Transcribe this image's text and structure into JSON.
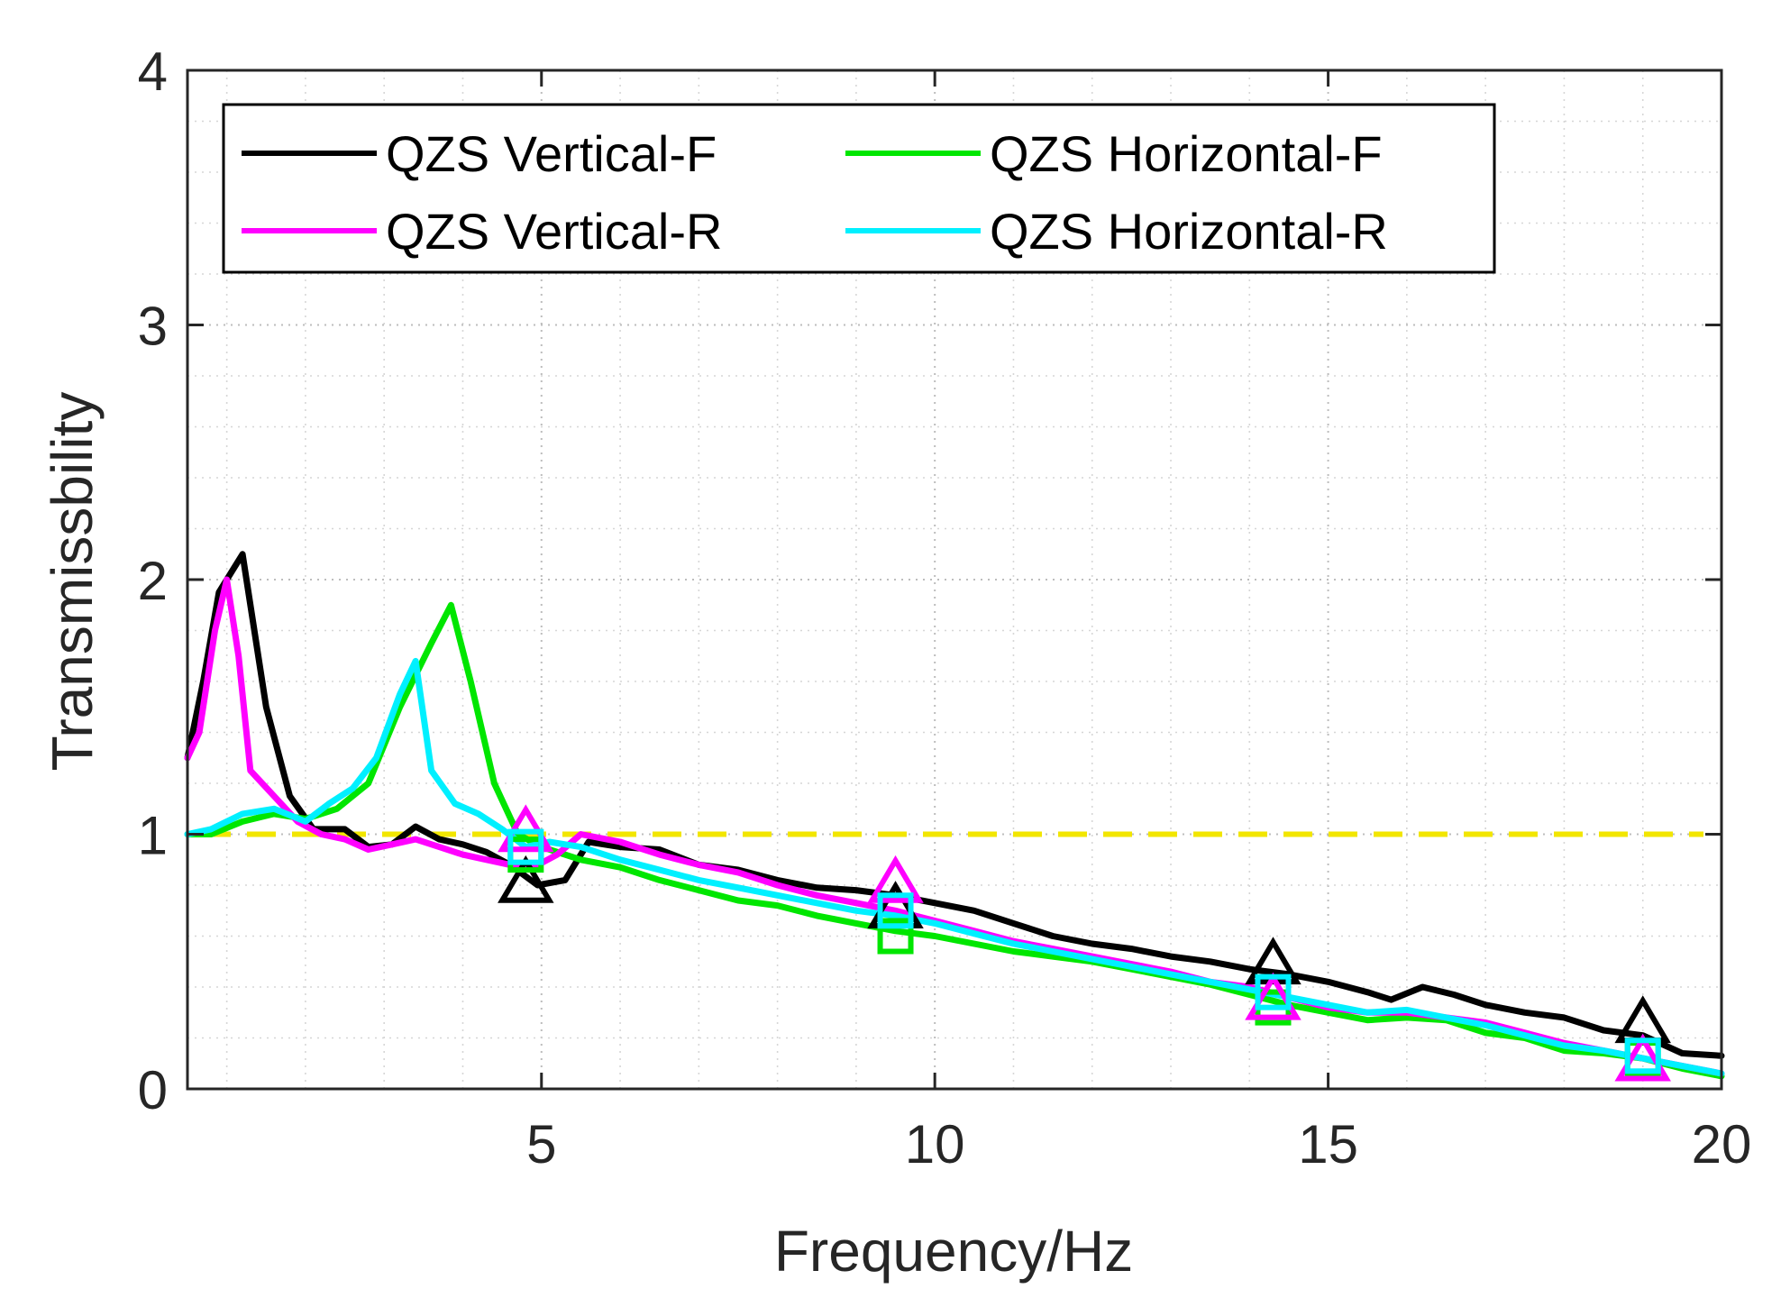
{
  "chart_data": {
    "type": "line",
    "title": "",
    "xlabel": "Frequency/Hz",
    "ylabel": "Transmissbility",
    "xlim": [
      0.5,
      20
    ],
    "ylim": [
      0,
      4
    ],
    "xticks": [
      5,
      10,
      15,
      20
    ],
    "yticks": [
      0,
      1,
      2,
      3,
      4
    ],
    "grid": "dotted, major and minor",
    "legend_position": "top-left, two columns",
    "reference_line": {
      "y": 1,
      "color": "#f2e600",
      "style": "dashed"
    },
    "series": [
      {
        "name": "QZS Vertical-F",
        "color": "#000000",
        "marker": "triangle",
        "x": [
          0.5,
          0.7,
          0.9,
          1.2,
          1.5,
          1.8,
          2.1,
          2.5,
          2.8,
          3.1,
          3.4,
          3.7,
          4.0,
          4.3,
          4.6,
          4.95,
          5.3,
          5.6,
          6.0,
          6.5,
          7.0,
          7.5,
          8.0,
          8.5,
          9.0,
          9.5,
          10.0,
          10.5,
          11.0,
          11.5,
          12.0,
          12.5,
          13.0,
          13.5,
          14.0,
          14.5,
          15.0,
          15.5,
          15.8,
          16.2,
          16.6,
          17.0,
          17.5,
          18.0,
          18.5,
          19.0,
          19.5,
          20.0
        ],
        "y": [
          1.3,
          1.6,
          1.95,
          2.1,
          1.5,
          1.15,
          1.02,
          1.02,
          0.95,
          0.96,
          1.03,
          0.98,
          0.96,
          0.93,
          0.88,
          0.8,
          0.82,
          0.97,
          0.95,
          0.94,
          0.88,
          0.86,
          0.82,
          0.79,
          0.78,
          0.76,
          0.73,
          0.7,
          0.65,
          0.6,
          0.57,
          0.55,
          0.52,
          0.5,
          0.47,
          0.45,
          0.42,
          0.38,
          0.35,
          0.4,
          0.37,
          0.33,
          0.3,
          0.28,
          0.23,
          0.21,
          0.14,
          0.13
        ],
        "marker_x": [
          4.8,
          9.5,
          14.3,
          19.0
        ],
        "marker_y": [
          0.8,
          0.7,
          0.48,
          0.25
        ]
      },
      {
        "name": "QZS Horizontal-F",
        "color": "#00e600",
        "marker": "square",
        "x": [
          0.5,
          0.8,
          1.2,
          1.6,
          2.0,
          2.4,
          2.8,
          3.2,
          3.6,
          3.85,
          4.1,
          4.4,
          4.7,
          5.0,
          5.5,
          6.0,
          6.5,
          7.0,
          7.5,
          8.0,
          8.5,
          9.0,
          9.5,
          10.0,
          10.5,
          11.0,
          11.5,
          12.0,
          12.5,
          13.0,
          13.5,
          14.0,
          14.5,
          15.0,
          15.5,
          16.0,
          16.5,
          17.0,
          17.5,
          18.0,
          18.5,
          19.0,
          19.5,
          20.0
        ],
        "y": [
          1.0,
          1.0,
          1.05,
          1.08,
          1.06,
          1.1,
          1.2,
          1.5,
          1.75,
          1.9,
          1.6,
          1.2,
          1.0,
          0.95,
          0.9,
          0.87,
          0.82,
          0.78,
          0.74,
          0.72,
          0.68,
          0.65,
          0.62,
          0.6,
          0.57,
          0.54,
          0.52,
          0.5,
          0.47,
          0.44,
          0.41,
          0.37,
          0.33,
          0.3,
          0.27,
          0.28,
          0.27,
          0.22,
          0.2,
          0.15,
          0.14,
          0.12,
          0.08,
          0.05
        ],
        "marker_x": [
          4.8,
          9.5,
          14.3,
          19.0
        ],
        "marker_y": [
          0.92,
          0.6,
          0.32,
          0.12
        ]
      },
      {
        "name": "QZS Vertical-R",
        "color": "#ff00ff",
        "marker": "triangle",
        "x": [
          0.5,
          0.65,
          0.85,
          1.0,
          1.15,
          1.3,
          1.6,
          1.9,
          2.2,
          2.5,
          2.8,
          3.1,
          3.4,
          3.7,
          4.0,
          4.3,
          4.6,
          4.9,
          5.2,
          5.5,
          6.0,
          6.5,
          7.0,
          7.5,
          8.0,
          8.5,
          9.0,
          9.5,
          10.0,
          10.5,
          11.0,
          11.5,
          12.0,
          12.5,
          13.0,
          13.5,
          14.0,
          14.5,
          15.0,
          15.5,
          16.0,
          16.5,
          17.0,
          17.5,
          18.0,
          18.5,
          19.0,
          19.5,
          20.0
        ],
        "y": [
          1.3,
          1.4,
          1.8,
          2.0,
          1.7,
          1.25,
          1.15,
          1.05,
          1.0,
          0.98,
          0.94,
          0.96,
          0.98,
          0.95,
          0.92,
          0.9,
          0.88,
          0.87,
          0.92,
          1.0,
          0.97,
          0.92,
          0.88,
          0.85,
          0.8,
          0.76,
          0.73,
          0.7,
          0.66,
          0.62,
          0.58,
          0.55,
          0.52,
          0.49,
          0.46,
          0.42,
          0.4,
          0.36,
          0.32,
          0.3,
          0.3,
          0.28,
          0.26,
          0.22,
          0.18,
          0.15,
          0.12,
          0.09,
          0.06
        ],
        "marker_x": [
          4.8,
          9.5,
          14.3,
          19.0
        ],
        "marker_y": [
          1.0,
          0.8,
          0.34,
          0.1
        ]
      },
      {
        "name": "QZS Horizontal-R",
        "color": "#00f0ff",
        "marker": "square",
        "x": [
          0.5,
          0.8,
          1.2,
          1.6,
          2.0,
          2.3,
          2.6,
          2.9,
          3.2,
          3.4,
          3.6,
          3.9,
          4.2,
          4.5,
          4.8,
          5.1,
          5.5,
          6.0,
          6.5,
          7.0,
          7.5,
          8.0,
          8.5,
          9.0,
          9.5,
          10.0,
          10.5,
          11.0,
          11.5,
          12.0,
          12.5,
          13.0,
          13.5,
          14.0,
          14.5,
          15.0,
          15.5,
          16.0,
          16.5,
          17.0,
          17.5,
          18.0,
          18.5,
          19.0,
          19.5,
          20.0
        ],
        "y": [
          1.0,
          1.02,
          1.08,
          1.1,
          1.05,
          1.12,
          1.18,
          1.3,
          1.55,
          1.68,
          1.25,
          1.12,
          1.08,
          1.02,
          0.95,
          0.97,
          0.95,
          0.9,
          0.86,
          0.82,
          0.79,
          0.76,
          0.73,
          0.7,
          0.68,
          0.65,
          0.61,
          0.57,
          0.54,
          0.51,
          0.48,
          0.45,
          0.42,
          0.39,
          0.36,
          0.33,
          0.3,
          0.31,
          0.28,
          0.25,
          0.21,
          0.17,
          0.15,
          0.12,
          0.09,
          0.06
        ],
        "marker_x": [
          4.8,
          9.5,
          14.3,
          19.0
        ],
        "marker_y": [
          0.95,
          0.7,
          0.38,
          0.13
        ]
      }
    ]
  }
}
